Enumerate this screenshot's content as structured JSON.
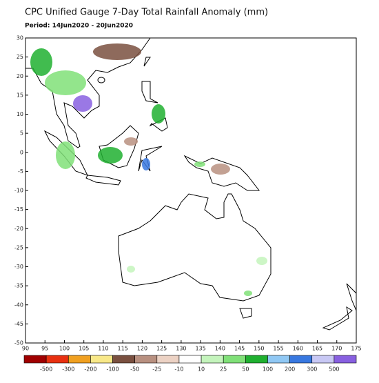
{
  "title": "CPC Unified Gauge 7-Day Total Rainfall Anomaly (mm)",
  "period": "Period: 14Jun2020 - 20Jun2020",
  "lat_labels": [
    "30",
    "25",
    "20",
    "15",
    "10",
    "5",
    "0",
    "-5",
    "-10",
    "-15",
    "-20",
    "-25",
    "-30",
    "-35",
    "-40",
    "-45",
    "-50"
  ],
  "lon_labels": [
    "90",
    "95",
    "100",
    "105",
    "110",
    "115",
    "120",
    "125",
    "130",
    "135",
    "140",
    "145",
    "150",
    "155",
    "160",
    "165",
    "170",
    "175"
  ],
  "legend": {
    "colors": [
      "#a00000",
      "#e83010",
      "#f0a020",
      "#f8e888",
      "#7a5040",
      "#b89080",
      "#ecd2c4",
      "#ffffff",
      "#c4f4bc",
      "#80e078",
      "#20b030",
      "#90c8f4",
      "#3878e0",
      "#c8c8f4",
      "#8860e0"
    ],
    "labels": [
      "-500",
      "-300",
      "-200",
      "-100",
      "-50",
      "-25",
      "-10",
      "10",
      "25",
      "50",
      "100",
      "200",
      "300",
      "500"
    ]
  }
}
